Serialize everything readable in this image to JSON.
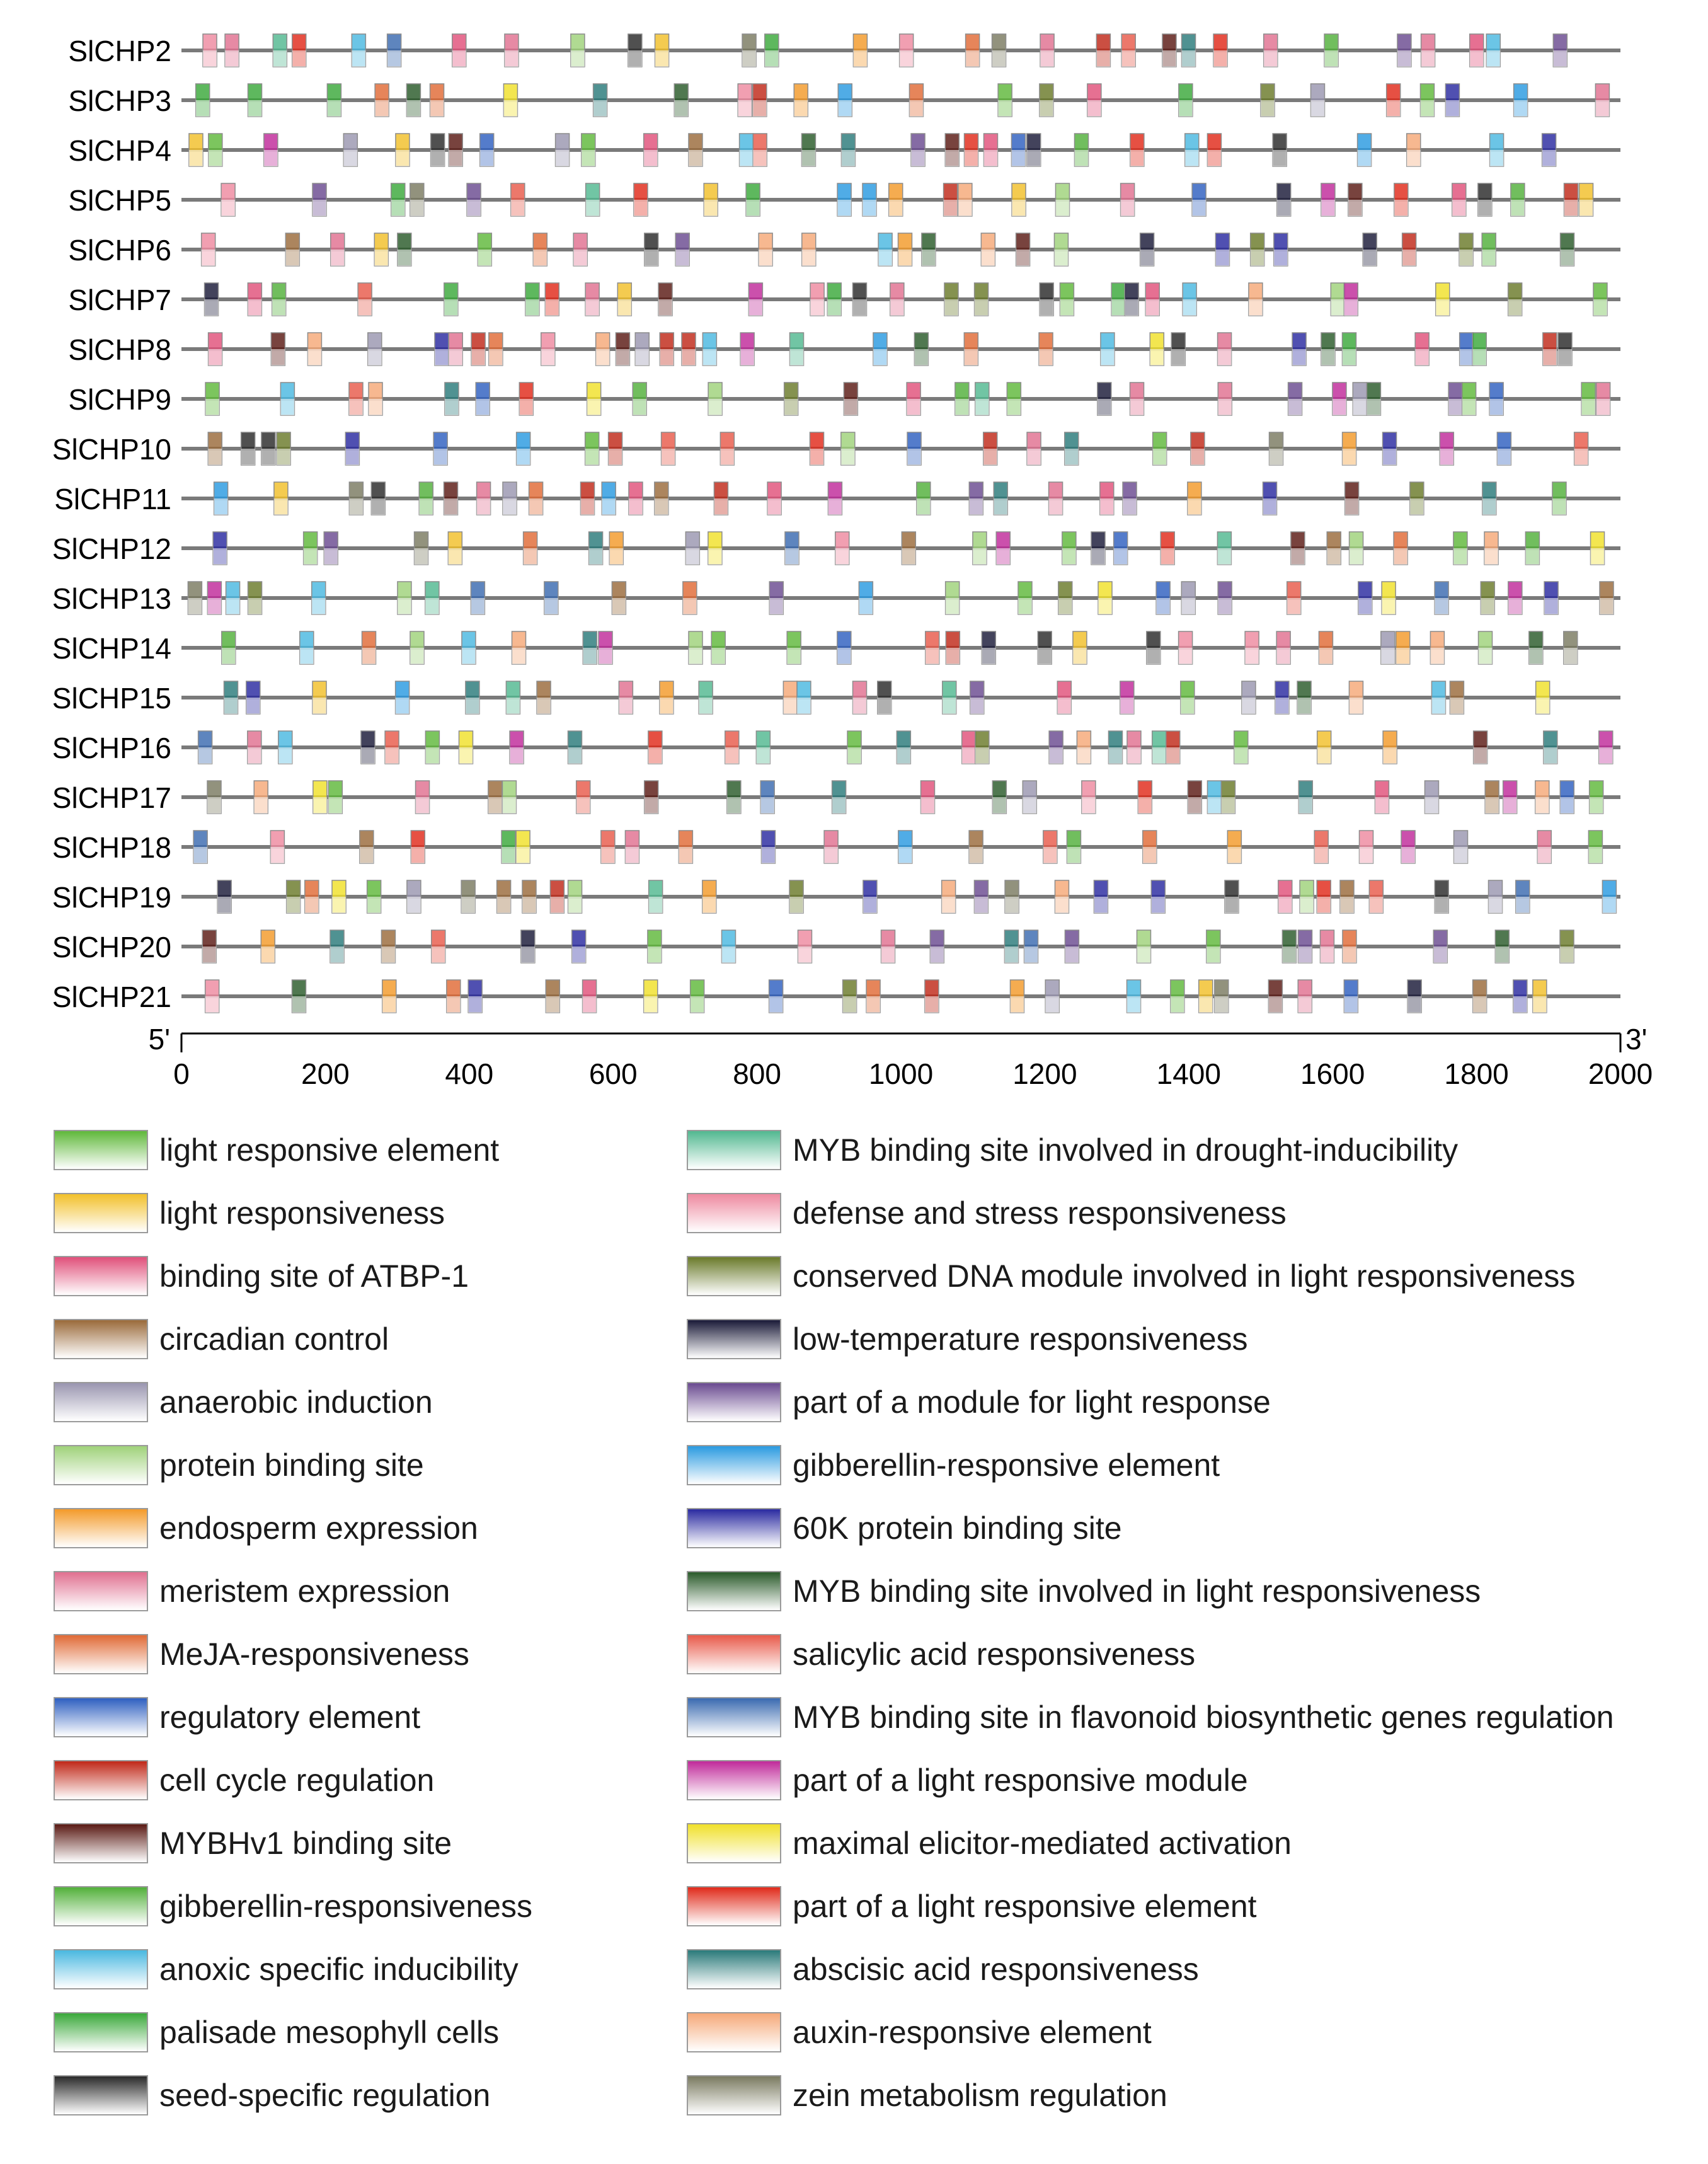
{
  "axis": {
    "start_label": "5'",
    "end_label": "3'",
    "ticks": [
      0,
      200,
      400,
      600,
      800,
      1000,
      1200,
      1400,
      1600,
      1800,
      2000
    ],
    "min": 0,
    "max": 2000
  },
  "genes": [
    {
      "name": "SlCHP2"
    },
    {
      "name": "SlCHP3"
    },
    {
      "name": "SlCHP4"
    },
    {
      "name": "SlCHP5"
    },
    {
      "name": "SlCHP6"
    },
    {
      "name": "SlCHP7"
    },
    {
      "name": "SlCHP8"
    },
    {
      "name": "SlCHP9"
    },
    {
      "name": "SlCHP10"
    },
    {
      "name": "SlCHP11"
    },
    {
      "name": "SlCHP12"
    },
    {
      "name": "SlCHP13"
    },
    {
      "name": "SlCHP14"
    },
    {
      "name": "SlCHP15"
    },
    {
      "name": "SlCHP16"
    },
    {
      "name": "SlCHP17"
    },
    {
      "name": "SlCHP18"
    },
    {
      "name": "SlCHP19"
    },
    {
      "name": "SlCHP20"
    },
    {
      "name": "SlCHP21"
    }
  ],
  "legend": [
    {
      "label": "light responsive element",
      "color": "#5fb83a"
    },
    {
      "label": "light responsiveness",
      "color": "#f2c02a"
    },
    {
      "label": "binding site of ATBP-1",
      "color": "#e0507a"
    },
    {
      "label": "circadian control",
      "color": "#9a6a3a"
    },
    {
      "label": "anaerobic induction",
      "color": "#9a96b0"
    },
    {
      "label": "protein binding site",
      "color": "#9fd27a"
    },
    {
      "label": "endosperm expression",
      "color": "#f39a2a"
    },
    {
      "label": "meristem expression",
      "color": "#e07090"
    },
    {
      "label": "MeJA-responsiveness",
      "color": "#e06a36"
    },
    {
      "label": "regulatory element",
      "color": "#2e5fc0"
    },
    {
      "label": "cell cycle regulation",
      "color": "#c02818"
    },
    {
      "label": "MYBHv1 binding site",
      "color": "#5a1a14"
    },
    {
      "label": "gibberellin-responsiveness",
      "color": "#52b03a"
    },
    {
      "label": "anoxic specific inducibility",
      "color": "#4ab8e0"
    },
    {
      "label": "palisade mesophyll cells",
      "color": "#3aa83a"
    },
    {
      "label": "seed-specific regulation",
      "color": "#2a2a2a"
    },
    {
      "label": "MYB binding site involved in drought-inducibility",
      "color": "#52b890"
    },
    {
      "label": "defense and stress responsiveness",
      "color": "#ee8aa0"
    },
    {
      "label": "conserved DNA module involved in light responsiveness",
      "color": "#6a7a2a"
    },
    {
      "label": "low-temperature responsiveness",
      "color": "#1a1a38"
    },
    {
      "label": "part of a module for light response",
      "color": "#6a4a90"
    },
    {
      "label": "gibberellin-responsive element",
      "color": "#2a9ae0"
    },
    {
      "label": "60K protein binding site",
      "color": "#2a2aa0"
    },
    {
      "label": "MYB binding site involved in light responsiveness",
      "color": "#2a5a2a"
    },
    {
      "label": "salicylic acid responsiveness",
      "color": "#e85a4a"
    },
    {
      "label": "MYB binding site in flavonoid biosynthetic genes regulation",
      "color": "#3a6ab0"
    },
    {
      "label": "part of a light responsive module",
      "color": "#c02a9a"
    },
    {
      "label": "maximal elicitor-mediated activation",
      "color": "#f0e02a"
    },
    {
      "label": "part of a light responsive element",
      "color": "#e02a1a"
    },
    {
      "label": "abscisic acid responsiveness",
      "color": "#2a7a7a"
    },
    {
      "label": "auxin-responsive element",
      "color": "#f5a878"
    },
    {
      "label": "zein metabolism regulation",
      "color": "#7a7a60"
    }
  ]
}
